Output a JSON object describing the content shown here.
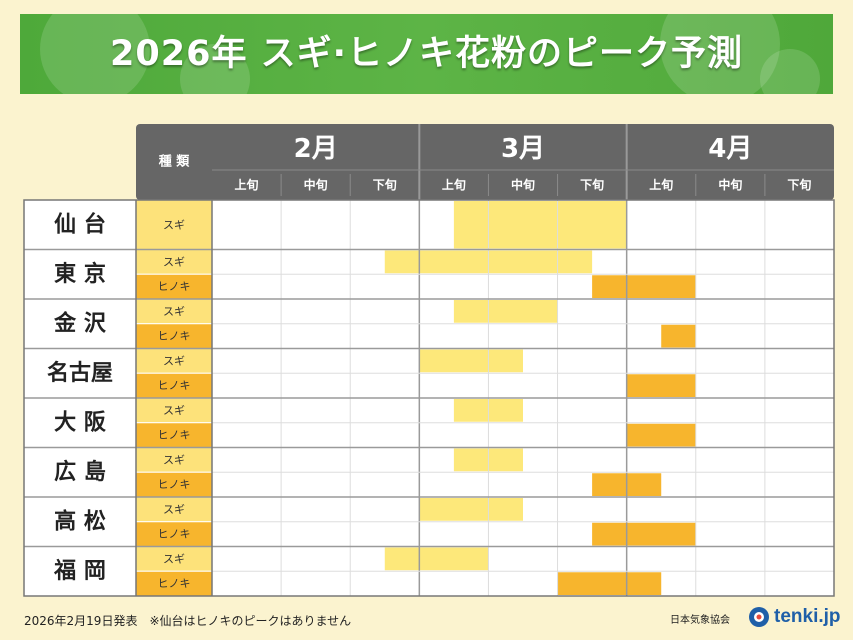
{
  "header": {
    "title": "2026年 スギ·ヒノキ花粉のピーク予測"
  },
  "table": {
    "type_header": "種 類"
  },
  "footer": {
    "note": "2026年2月19日発表　※仙台はヒノキのピークはありません",
    "issuer": "日本気象協会",
    "logo_text": "tenki.jp"
  },
  "colors": {
    "sugi": "#fde87a",
    "hinoki": "#f7b52d",
    "header_bg": "#666666",
    "type_cell": "#f7b52d"
  },
  "chart_data": {
    "type": "table",
    "months": [
      {
        "label": "2月",
        "periods": [
          "上旬",
          "中旬",
          "下旬"
        ]
      },
      {
        "label": "3月",
        "periods": [
          "上旬",
          "中旬",
          "下旬"
        ]
      },
      {
        "label": "4月",
        "periods": [
          "上旬",
          "中旬",
          "下旬"
        ]
      }
    ],
    "cities": [
      {
        "name": "仙 台",
        "rows": [
          {
            "type": "スギ",
            "kind": "sugi",
            "start": 3.5,
            "end": 6
          }
        ]
      },
      {
        "name": "東 京",
        "rows": [
          {
            "type": "スギ",
            "kind": "sugi",
            "start": 2.5,
            "end": 5.5
          },
          {
            "type": "ヒノキ",
            "kind": "hinoki",
            "start": 5.5,
            "end": 7
          }
        ]
      },
      {
        "name": "金 沢",
        "rows": [
          {
            "type": "スギ",
            "kind": "sugi",
            "start": 3.5,
            "end": 5
          },
          {
            "type": "ヒノキ",
            "kind": "hinoki",
            "start": 6.5,
            "end": 7
          }
        ]
      },
      {
        "name": "名古屋",
        "rows": [
          {
            "type": "スギ",
            "kind": "sugi",
            "start": 3,
            "end": 4.5
          },
          {
            "type": "ヒノキ",
            "kind": "hinoki",
            "start": 6,
            "end": 7
          }
        ]
      },
      {
        "name": "大 阪",
        "rows": [
          {
            "type": "スギ",
            "kind": "sugi",
            "start": 3.5,
            "end": 4.5
          },
          {
            "type": "ヒノキ",
            "kind": "hinoki",
            "start": 6,
            "end": 7
          }
        ]
      },
      {
        "name": "広 島",
        "rows": [
          {
            "type": "スギ",
            "kind": "sugi",
            "start": 3.5,
            "end": 4.5
          },
          {
            "type": "ヒノキ",
            "kind": "hinoki",
            "start": 5.5,
            "end": 6.5
          }
        ]
      },
      {
        "name": "高 松",
        "rows": [
          {
            "type": "スギ",
            "kind": "sugi",
            "start": 3,
            "end": 4.5
          },
          {
            "type": "ヒノキ",
            "kind": "hinoki",
            "start": 5.5,
            "end": 7
          }
        ]
      },
      {
        "name": "福 岡",
        "rows": [
          {
            "type": "スギ",
            "kind": "sugi",
            "start": 2.5,
            "end": 4
          },
          {
            "type": "ヒノキ",
            "kind": "hinoki",
            "start": 5,
            "end": 6.5
          }
        ]
      }
    ]
  }
}
